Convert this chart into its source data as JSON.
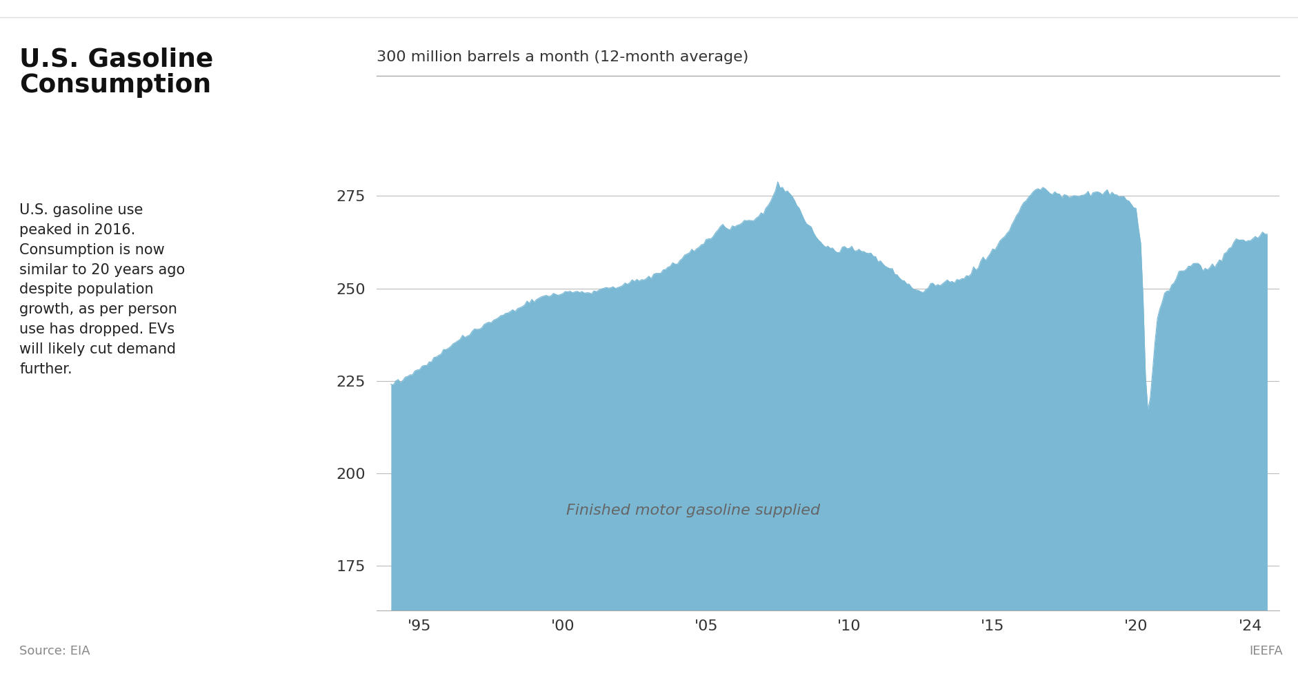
{
  "title_main": "U.S. Gasoline\nConsumption",
  "subtitle": "300 million barrels a month (12-month average)",
  "description": "U.S. gasoline use\npeaked in 2016.\nConsumption is now\nsimilar to 20 years ago\ndespite population\ngrowth, as per person\nuse has dropped. EVs\nwill likely cut demand\nfurther.",
  "source_text": "Source: EIA",
  "brand_text": "IEEFA",
  "area_color": "#7ab8d4",
  "fill_label": "Finished motor gasoline supplied",
  "background_color": "#ffffff",
  "grid_color": "#bbbbbb",
  "ylim": [
    163,
    295
  ],
  "yticks": [
    175,
    200,
    225,
    250,
    275
  ],
  "xtick_labels": [
    "'95",
    "'00",
    "'05",
    "'10",
    "'15",
    "'20",
    "'24"
  ],
  "xtick_years": [
    1995,
    2000,
    2005,
    2010,
    2015,
    2020,
    2024
  ],
  "xlim": [
    1993.5,
    2025.0
  ]
}
